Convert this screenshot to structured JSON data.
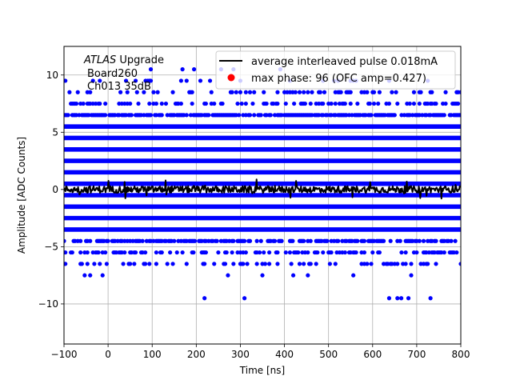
{
  "chart_data": {
    "type": "scatter",
    "title": "",
    "xlabel": "Time [ns]",
    "ylabel": "Amplitude [ADC Counts]",
    "xlim": [
      -100,
      800
    ],
    "ylim": [
      -13.5,
      12.5
    ],
    "xticks": [
      -100,
      0,
      100,
      200,
      300,
      400,
      500,
      600,
      700,
      800
    ],
    "yticks": [
      -10,
      -5,
      0,
      5,
      10
    ],
    "grid": true,
    "legend_position": "top-right",
    "annotation": {
      "line1_italic": "ATLAS",
      "line1_rest": " Upgrade",
      "line2": "Board260",
      "line3": "Ch013 35dB"
    },
    "colors": {
      "samples": "#0000ff",
      "average": "#000000",
      "max_phase": "#ff0000"
    },
    "series": [
      {
        "name": "average interleaved pulse 0.018mA",
        "kind": "line",
        "x_range": [
          -100,
          800
        ],
        "mean": 0.0,
        "noise_band": [
          -0.8,
          0.9
        ]
      },
      {
        "name": "max phase: 96 (OFC amp=0.427)",
        "kind": "marker",
        "x": [],
        "y": []
      }
    ],
    "samples": {
      "description_levels": [
        {
          "y": 10.5,
          "density": 0.02
        },
        {
          "y": 9.5,
          "density": 0.06
        },
        {
          "y": 8.5,
          "density": 0.2
        },
        {
          "y": 7.5,
          "density": 0.35
        },
        {
          "y": 6.5,
          "density": 0.75
        },
        {
          "y": 5.5,
          "density": 1.0
        },
        {
          "y": 4.5,
          "density": 1.0
        },
        {
          "y": 3.5,
          "density": 1.0
        },
        {
          "y": 2.5,
          "density": 1.0
        },
        {
          "y": 1.5,
          "density": 1.0
        },
        {
          "y": 0.5,
          "density": 1.0
        },
        {
          "y": -0.5,
          "density": 1.0
        },
        {
          "y": -1.5,
          "density": 1.0
        },
        {
          "y": -2.5,
          "density": 1.0
        },
        {
          "y": -3.5,
          "density": 1.0
        },
        {
          "y": -4.5,
          "density": 0.55
        },
        {
          "y": -5.5,
          "density": 0.35
        },
        {
          "y": -6.5,
          "density": 0.2
        },
        {
          "y": -7.5,
          "density": 0.06
        },
        {
          "y": -9.5,
          "density": 0.01
        }
      ],
      "x_step": 3.125
    }
  }
}
